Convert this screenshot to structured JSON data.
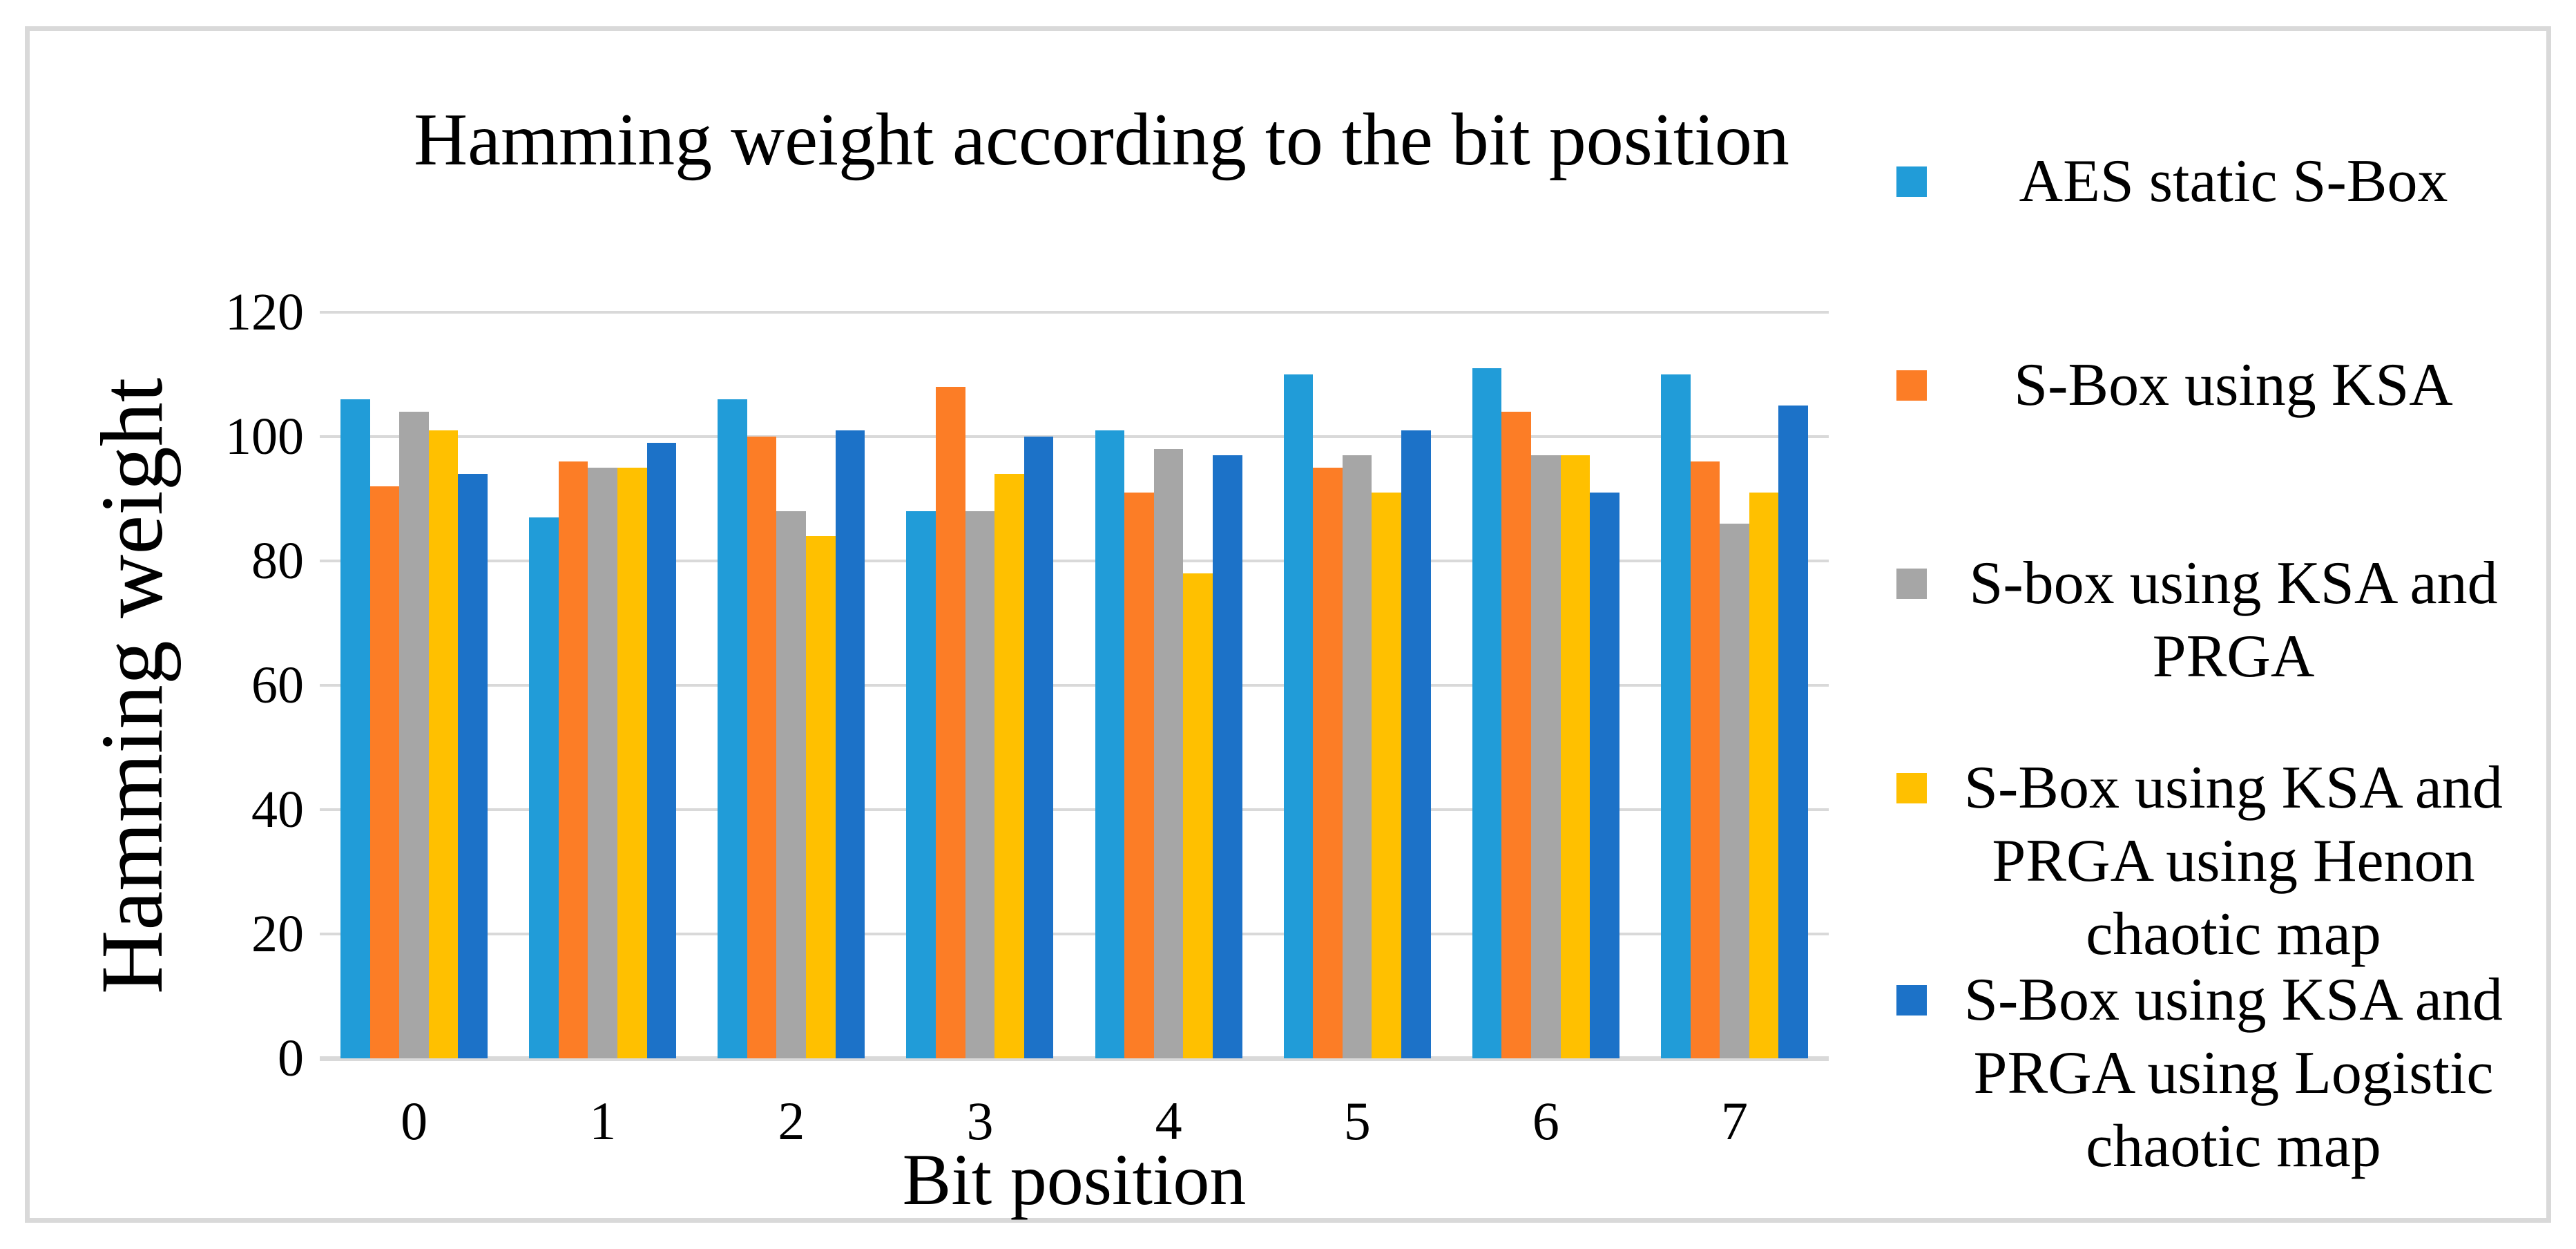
{
  "title": "Hamming weight according to the bit position",
  "axes": {
    "x_title": "Bit position",
    "y_title": "Hamming weight",
    "y_ticks_top_to_bottom": [
      "120",
      "100",
      "80",
      "60",
      "40",
      "20",
      "0"
    ]
  },
  "chart_data": {
    "type": "bar",
    "title": "Hamming weight according to the bit position",
    "xlabel": "Bit position",
    "ylabel": "Hamming weight",
    "ylim": [
      0,
      120
    ],
    "y_tick_step": 20,
    "grid": "horizontal",
    "gridline_color": "#D9D9D9",
    "border_color": "#D9D9D9",
    "legend_position": "right",
    "categories": [
      "0",
      "1",
      "2",
      "3",
      "4",
      "5",
      "6",
      "7"
    ],
    "series": [
      {
        "name": "AES static S-Box",
        "color": "#219CD8",
        "values": [
          106,
          87,
          106,
          88,
          101,
          110,
          111,
          110
        ]
      },
      {
        "name": "S-Box using KSA",
        "color": "#FC7D26",
        "values": [
          92,
          96,
          100,
          108,
          91,
          95,
          104,
          96
        ]
      },
      {
        "name": "S-box using KSA and PRGA",
        "color": "#A6A6A6",
        "values": [
          104,
          95,
          88,
          88,
          98,
          97,
          97,
          86
        ]
      },
      {
        "name": "S-Box using KSA and PRGA using Henon chaotic map",
        "color": "#FFC000",
        "values": [
          101,
          95,
          84,
          94,
          78,
          91,
          97,
          91
        ]
      },
      {
        "name": "S-Box using KSA and PRGA using Logistic chaotic map",
        "color": "#1C72C8",
        "values": [
          94,
          99,
          101,
          100,
          97,
          101,
          91,
          105
        ]
      }
    ]
  }
}
